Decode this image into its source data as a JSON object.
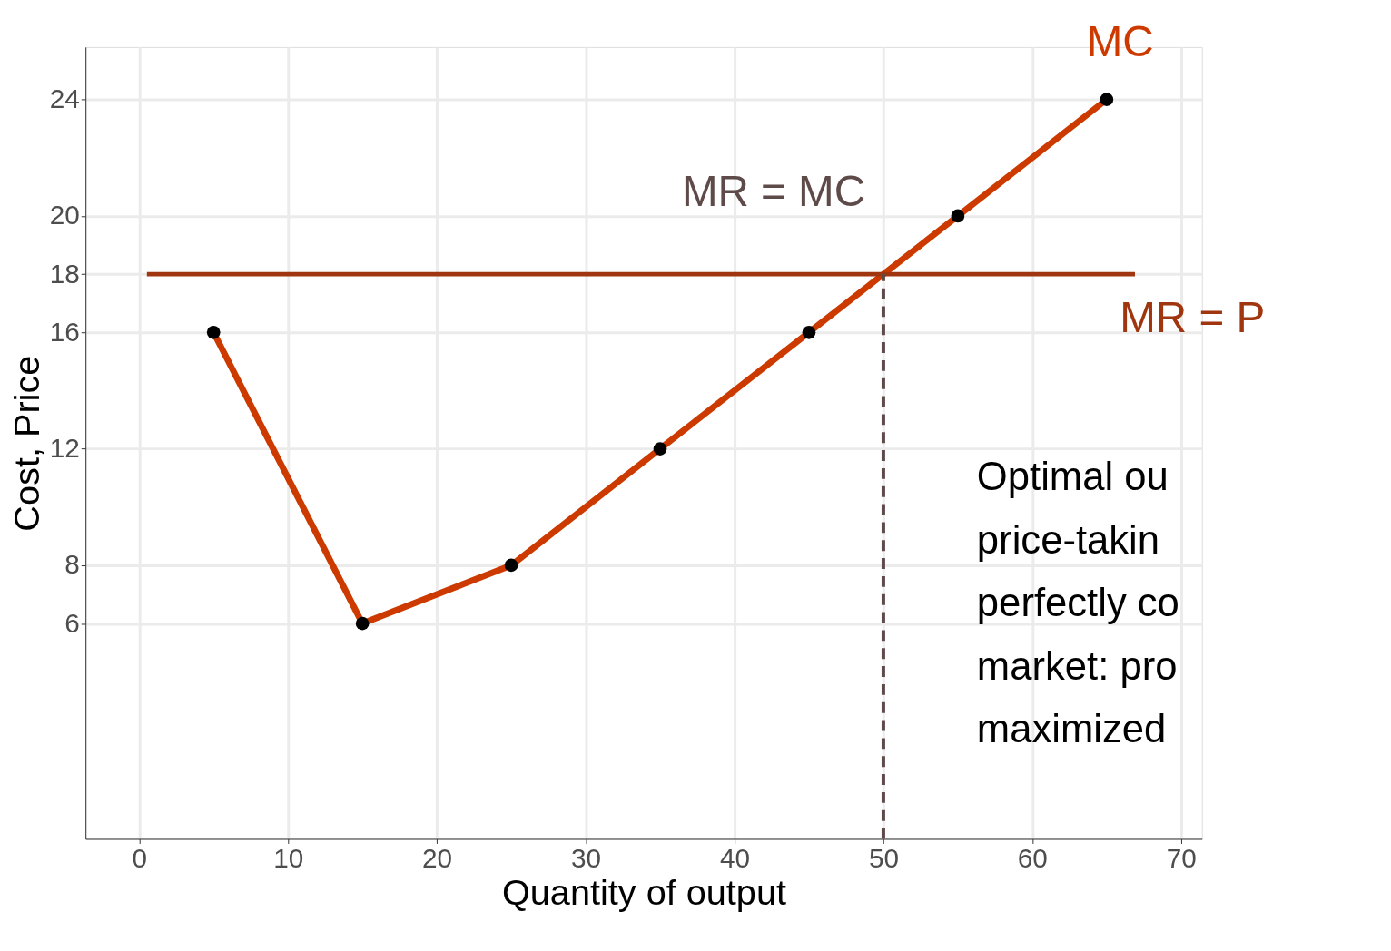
{
  "chart_data": {
    "type": "line",
    "xlabel": "Quantity of output",
    "ylabel": "Cost, Price",
    "x": [
      5,
      15,
      25,
      35,
      45,
      55,
      65
    ],
    "series": [
      {
        "name": "MC",
        "color": "#cc3a00",
        "values": [
          16,
          6,
          8,
          12,
          16,
          20,
          24
        ]
      }
    ],
    "marker": "circle",
    "line_style": "solid",
    "xlim": [
      -3.6,
      71.4
    ],
    "xticks": [
      0,
      10,
      20,
      30,
      40,
      50,
      60,
      70
    ],
    "ylim": [
      -1.4,
      25.8
    ],
    "yticks": [
      6,
      8,
      12,
      16,
      18,
      20,
      24
    ],
    "grid": true,
    "legend": false,
    "ref_lines": [
      {
        "axis": "y",
        "value": 18,
        "label": "MR = P",
        "color": "#a0360f",
        "line_style": "solid"
      },
      {
        "axis": "x",
        "value": 50,
        "label": "MR = MC",
        "color": "#5f4a4a",
        "line_style": "dashed"
      }
    ],
    "annotations": [
      "Optimal ou",
      "price-takin",
      "perfectly co",
      "market: pro",
      "maximized"
    ]
  }
}
